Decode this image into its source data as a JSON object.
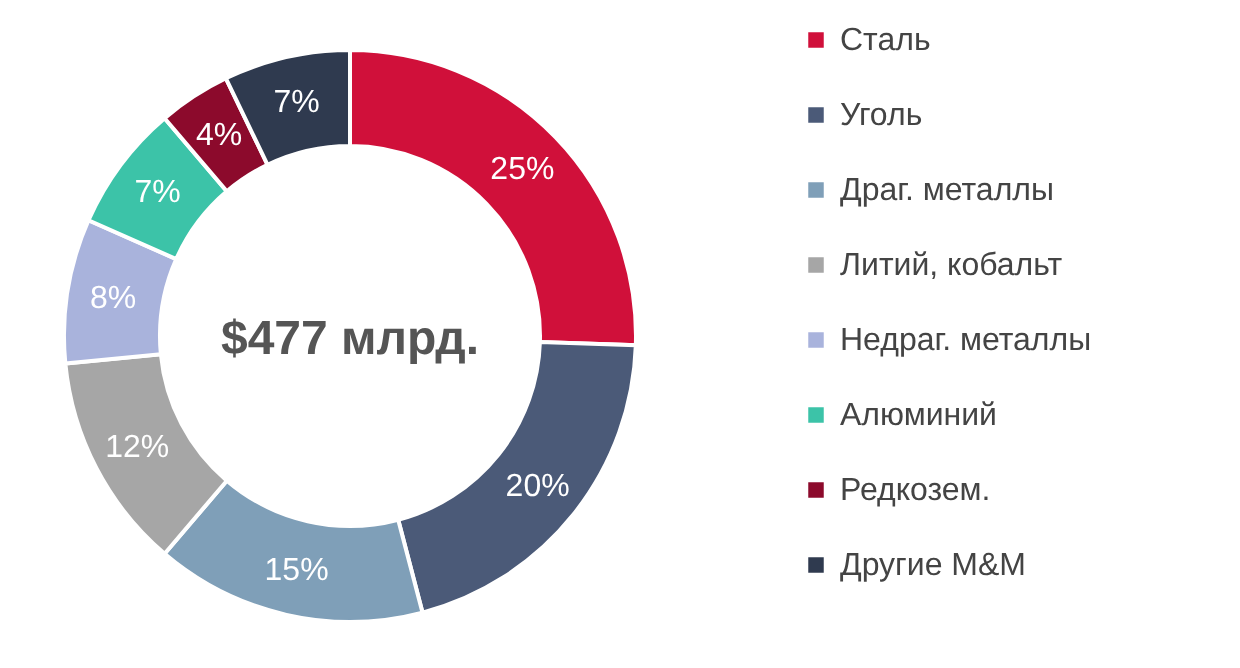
{
  "chart_data": {
    "type": "donut",
    "categories": [
      "Сталь",
      "Уголь",
      "Драг. металлы",
      "Литий, кобальт",
      "Недраг. металлы",
      "Алюминий",
      "Редкозем.",
      "Другие M&M"
    ],
    "values": [
      25,
      20,
      15,
      12,
      8,
      7,
      4,
      7
    ],
    "colors": [
      "#d0103a",
      "#4b5a78",
      "#7f9fb8",
      "#a6a6a6",
      "#a9b3dc",
      "#3cc3a8",
      "#8c0a2c",
      "#2f3a4f"
    ],
    "value_labels": [
      "25%",
      "20%",
      "15%",
      "12%",
      "8%",
      "7%",
      "4%",
      "7%"
    ],
    "annotations": [
      "$477 млрд."
    ],
    "legend": "right"
  }
}
